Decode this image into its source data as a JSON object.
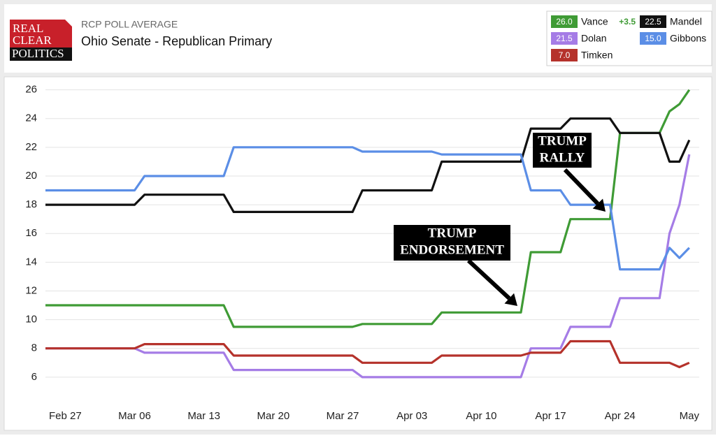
{
  "chart_data": {
    "type": "line",
    "logo_lines": [
      "REAL",
      "CLEAR",
      "POLITICS"
    ],
    "subtitle": "RCP POLL AVERAGE",
    "title": "Ohio Senate - Republican Primary",
    "x": [
      "Feb 25",
      "Mar 06",
      "Mar 07",
      "Mar 15",
      "Mar 16",
      "Mar 28",
      "Mar 29",
      "Apr 05",
      "Apr 06",
      "Apr 14",
      "Apr 15",
      "Apr 18",
      "Apr 19",
      "Apr 23",
      "Apr 24",
      "Apr 28",
      "Apr 29",
      "Apr 30",
      "May 01"
    ],
    "xlim": [
      "Feb 25",
      "May 02"
    ],
    "xticks": [
      "Feb 27",
      "Mar 06",
      "Mar 13",
      "Mar 20",
      "Mar 27",
      "Apr 03",
      "Apr 10",
      "Apr 17",
      "Apr 24",
      {
        "value": "May 01",
        "label": "May"
      }
    ],
    "ylim": [
      4,
      27
    ],
    "yticks": [
      6,
      8,
      10,
      12,
      14,
      16,
      18,
      20,
      22,
      24,
      26
    ],
    "grid": true,
    "series": [
      {
        "name": "Vance",
        "color": "#3f9b35",
        "value_label": "26.0",
        "spread": "+3.5",
        "values": [
          11,
          11,
          11,
          11,
          9.5,
          9.5,
          9.7,
          9.7,
          10.5,
          10.5,
          14.7,
          14.7,
          17,
          17,
          23,
          23,
          24.5,
          25,
          26
        ]
      },
      {
        "name": "Dolan",
        "color": "#a57ce6",
        "value_label": "21.5",
        "values": [
          8,
          8,
          7.7,
          7.7,
          6.5,
          6.5,
          6,
          6,
          6,
          6,
          8,
          8,
          9.5,
          9.5,
          11.5,
          11.5,
          16,
          18,
          21.5
        ]
      },
      {
        "name": "Timken",
        "color": "#b5322b",
        "value_label": "7.0",
        "values": [
          8,
          8,
          8.3,
          8.3,
          7.5,
          7.5,
          7,
          7,
          7.5,
          7.5,
          7.7,
          7.7,
          8.5,
          8.5,
          7,
          7,
          7,
          6.7,
          7
        ]
      },
      {
        "name": "Mandel",
        "color": "#111111",
        "value_label": "22.5",
        "values": [
          18,
          18,
          18.7,
          18.7,
          17.5,
          17.5,
          19,
          19,
          21,
          21,
          23.3,
          23.3,
          24,
          24,
          23,
          23,
          21,
          21,
          22.5
        ]
      },
      {
        "name": "Gibbons",
        "color": "#5b8ee6",
        "value_label": "15.0",
        "values": [
          19,
          19,
          20,
          20,
          22,
          22,
          21.7,
          21.7,
          21.5,
          21.5,
          19,
          19,
          18,
          18,
          13.5,
          13.5,
          15,
          14.3,
          15
        ]
      }
    ],
    "annotations": [
      {
        "lines": [
          "TRUMP",
          "ENDORSEMENT"
        ]
      },
      {
        "lines": [
          "TRUMP",
          "RALLY"
        ]
      }
    ]
  }
}
